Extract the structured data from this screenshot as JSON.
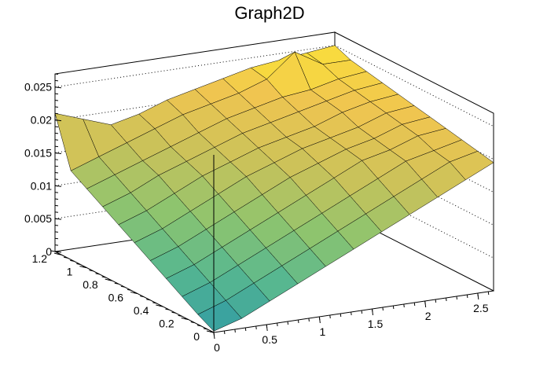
{
  "chart_data": {
    "type": "surface",
    "title": "Graph2D",
    "xlabel": "",
    "ylabel": "",
    "zlabel": "",
    "xlim": [
      0,
      2.65
    ],
    "ylim": [
      0,
      1.25
    ],
    "zlim": [
      0,
      0.027
    ],
    "x_ticks": [
      0,
      0.5,
      1,
      1.5,
      2,
      2.5
    ],
    "x_tick_labels": [
      "0",
      "0.5",
      "1",
      "1.5",
      "2",
      "2.5"
    ],
    "y_ticks": [
      0,
      0.2,
      0.4,
      0.6,
      0.8,
      1,
      1.2
    ],
    "y_tick_labels": [
      "0",
      "0.2",
      "0.4",
      "0.6",
      "0.8",
      "1",
      "1.2"
    ],
    "z_ticks": [
      0,
      0.005,
      0.01,
      0.015,
      0.02,
      0.025
    ],
    "z_tick_labels": [
      "0",
      "0.005",
      "0.01",
      "0.015",
      "0.02",
      "0.025"
    ],
    "grid": true,
    "colormap": [
      "#2f9aa6",
      "#58b88f",
      "#8fc46e",
      "#c9c25a",
      "#f0c550",
      "#ffee2e"
    ],
    "x_values": [
      0,
      0.265,
      0.53,
      0.795,
      1.06,
      1.325,
      1.59,
      1.855,
      2.12,
      2.385,
      2.65
    ],
    "y_values": [
      0,
      0.125,
      0.25,
      0.375,
      0.5,
      0.625,
      0.75,
      0.875,
      1.0,
      1.125,
      1.25
    ],
    "z_values": [
      [
        0.0002,
        0.0015,
        0.0035,
        0.0055,
        0.0075,
        0.0095,
        0.0115,
        0.0135,
        0.0155,
        0.0175,
        0.0195
      ],
      [
        0.0015,
        0.003,
        0.005,
        0.007,
        0.009,
        0.011,
        0.013,
        0.015,
        0.017,
        0.019,
        0.02
      ],
      [
        0.003,
        0.0045,
        0.0065,
        0.0085,
        0.0105,
        0.0125,
        0.0145,
        0.0165,
        0.0185,
        0.0195,
        0.0205
      ],
      [
        0.0045,
        0.006,
        0.008,
        0.01,
        0.012,
        0.014,
        0.016,
        0.018,
        0.019,
        0.0205,
        0.021
      ],
      [
        0.006,
        0.0075,
        0.0095,
        0.0115,
        0.0135,
        0.0155,
        0.017,
        0.0185,
        0.0195,
        0.021,
        0.0215
      ],
      [
        0.0075,
        0.009,
        0.011,
        0.013,
        0.015,
        0.0165,
        0.018,
        0.019,
        0.02,
        0.0215,
        0.022
      ],
      [
        0.009,
        0.0105,
        0.0125,
        0.0145,
        0.016,
        0.0175,
        0.0185,
        0.0195,
        0.021,
        0.022,
        0.0225
      ],
      [
        0.0105,
        0.012,
        0.014,
        0.0155,
        0.017,
        0.0185,
        0.0195,
        0.0205,
        0.0215,
        0.0225,
        0.023
      ],
      [
        0.012,
        0.0135,
        0.015,
        0.0165,
        0.018,
        0.0195,
        0.0205,
        0.0215,
        0.022,
        0.023,
        0.0235
      ],
      [
        0.0135,
        0.015,
        0.0165,
        0.018,
        0.0195,
        0.0205,
        0.0215,
        0.023,
        0.0265,
        0.024,
        0.024
      ],
      [
        0.021,
        0.0195,
        0.018,
        0.019,
        0.0205,
        0.0215,
        0.0225,
        0.0235,
        0.024,
        0.0245,
        0.025
      ]
    ]
  }
}
